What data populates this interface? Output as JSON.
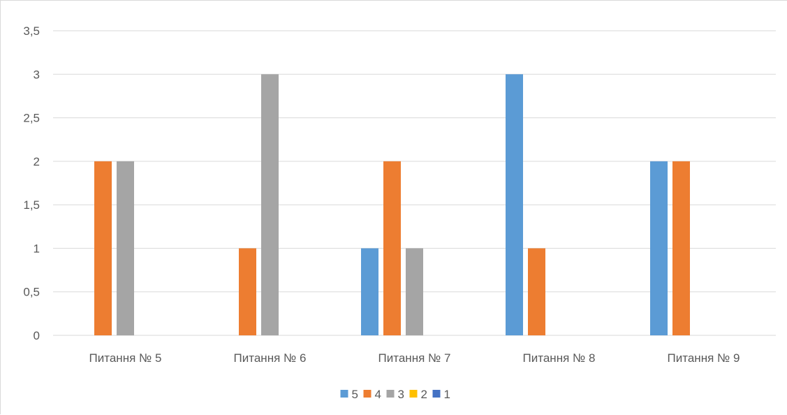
{
  "chart_data": {
    "type": "bar",
    "title": "",
    "xlabel": "",
    "ylabel": "",
    "ylim": [
      0,
      3.5
    ],
    "yticks": [
      "0",
      "0,5",
      "1",
      "1,5",
      "2",
      "2,5",
      "3",
      "3,5"
    ],
    "grid": true,
    "legend_position": "bottom",
    "categories": [
      "Питання № 5",
      "Питання № 6",
      "Питання № 7",
      "Питання № 8",
      "Питання № 9"
    ],
    "series": [
      {
        "name": "5",
        "color": "#5b9bd5",
        "values": [
          0,
          0,
          1,
          3,
          2
        ]
      },
      {
        "name": "4",
        "color": "#ed7d31",
        "values": [
          2,
          1,
          2,
          1,
          2
        ]
      },
      {
        "name": "3",
        "color": "#a5a5a5",
        "values": [
          2,
          3,
          1,
          0,
          0
        ]
      },
      {
        "name": "2",
        "color": "#ffc000",
        "values": [
          0,
          0,
          0,
          0,
          0
        ]
      },
      {
        "name": "1",
        "color": "#4472c4",
        "values": [
          0,
          0,
          0,
          0,
          0
        ]
      }
    ]
  }
}
